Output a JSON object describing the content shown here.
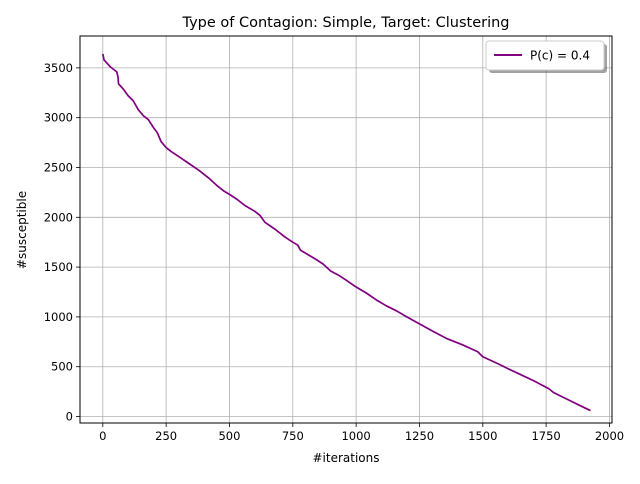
{
  "chart_data": {
    "type": "line",
    "title": "Type of Contagion: Simple, Target: Clustering",
    "xlabel": "#iterations",
    "ylabel": "#susceptible",
    "xlim": [
      -90,
      2010
    ],
    "ylim": [
      -65,
      3820
    ],
    "xticks": [
      0,
      250,
      500,
      750,
      1000,
      1250,
      1500,
      1750,
      2000
    ],
    "yticks": [
      0,
      500,
      1000,
      1500,
      2000,
      2500,
      3000,
      3500
    ],
    "grid": true,
    "legend_position": "top-right",
    "series": [
      {
        "name": "P(c) = 0.4",
        "color": "#800080",
        "x": [
          0,
          5,
          30,
          55,
          60,
          62,
          80,
          100,
          120,
          140,
          160,
          180,
          200,
          215,
          230,
          250,
          270,
          300,
          340,
          380,
          420,
          450,
          480,
          500,
          530,
          560,
          600,
          620,
          640,
          680,
          720,
          750,
          770,
          780,
          800,
          840,
          870,
          900,
          930,
          960,
          1000,
          1040,
          1080,
          1120,
          1160,
          1200,
          1250,
          1300,
          1360,
          1420,
          1480,
          1500,
          1560,
          1600,
          1650,
          1700,
          1760,
          1780,
          1820,
          1860,
          1900,
          1925
        ],
        "y": [
          3640,
          3580,
          3510,
          3460,
          3410,
          3340,
          3290,
          3220,
          3170,
          3080,
          3020,
          2980,
          2900,
          2850,
          2760,
          2700,
          2660,
          2610,
          2540,
          2470,
          2390,
          2320,
          2260,
          2230,
          2180,
          2120,
          2060,
          2020,
          1950,
          1880,
          1800,
          1750,
          1720,
          1670,
          1640,
          1580,
          1530,
          1460,
          1420,
          1370,
          1300,
          1240,
          1170,
          1110,
          1060,
          1000,
          930,
          860,
          780,
          720,
          650,
          600,
          530,
          480,
          420,
          360,
          280,
          240,
          190,
          140,
          90,
          60
        ]
      }
    ]
  }
}
